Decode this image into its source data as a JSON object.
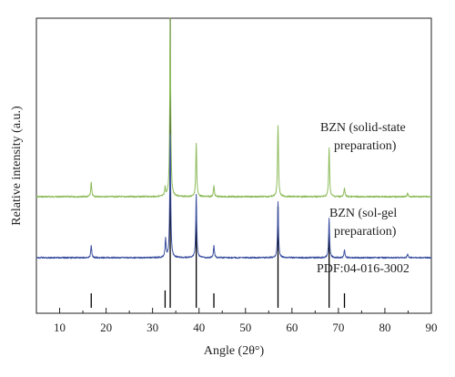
{
  "chart_data": {
    "type": "line",
    "xlabel": "Angle (2θ°)",
    "ylabel": "Relative intensity (a.u.)",
    "xlim": [
      5,
      90
    ],
    "x_ticks": [
      10,
      20,
      30,
      40,
      50,
      60,
      70,
      80,
      90
    ],
    "y_ticks_shown": false,
    "grid": false,
    "legend": "none",
    "series": [
      {
        "label_text": [
          "BZN (solid-state",
          "preparation)"
        ],
        "color": "#8dbb5a",
        "peaks": [
          {
            "x": 16.8,
            "intensity": 0.08
          },
          {
            "x": 32.7,
            "intensity": 0.05
          },
          {
            "x": 33.8,
            "intensity": 1.0
          },
          {
            "x": 39.4,
            "intensity": 0.3
          },
          {
            "x": 43.2,
            "intensity": 0.06
          },
          {
            "x": 57.0,
            "intensity": 0.4
          },
          {
            "x": 68.0,
            "intensity": 0.27
          },
          {
            "x": 71.3,
            "intensity": 0.05
          },
          {
            "x": 84.9,
            "intensity": 0.02
          }
        ]
      },
      {
        "label_text": [
          "BZN (sol-gel",
          "preparation)"
        ],
        "color": "#3b50a0",
        "peaks": [
          {
            "x": 16.8,
            "intensity": 0.1
          },
          {
            "x": 32.8,
            "intensity": 0.15
          },
          {
            "x": 33.8,
            "intensity": 1.0
          },
          {
            "x": 39.4,
            "intensity": 0.52
          },
          {
            "x": 43.2,
            "intensity": 0.1
          },
          {
            "x": 57.0,
            "intensity": 0.45
          },
          {
            "x": 68.0,
            "intensity": 0.32
          },
          {
            "x": 71.3,
            "intensity": 0.06
          },
          {
            "x": 84.9,
            "intensity": 0.03
          }
        ]
      }
    ],
    "reference": {
      "label": "PDF:04-016-3002",
      "color": "#000000",
      "lines": [
        {
          "x": 16.8,
          "intensity": 0.05
        },
        {
          "x": 32.7,
          "intensity": 0.06
        },
        {
          "x": 33.8,
          "intensity": 1.0
        },
        {
          "x": 39.4,
          "intensity": 0.35
        },
        {
          "x": 43.2,
          "intensity": 0.05
        },
        {
          "x": 57.0,
          "intensity": 0.35
        },
        {
          "x": 68.0,
          "intensity": 0.28
        },
        {
          "x": 71.3,
          "intensity": 0.05
        }
      ]
    }
  }
}
